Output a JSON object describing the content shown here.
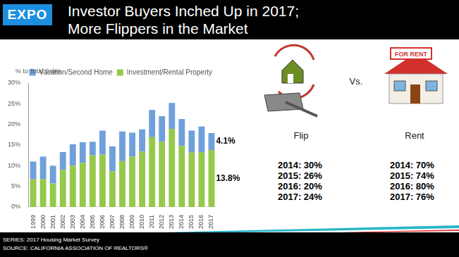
{
  "header": {
    "logo": "EXPO",
    "title_lines": [
      "Investor Buyers Inched Up in 2017;",
      "More Flippers in the Market"
    ]
  },
  "chart_data": {
    "type": "bar",
    "stacked": true,
    "grid": false,
    "legend": "top",
    "y_label": "% to Total Sales",
    "categories": [
      "1999",
      "2000",
      "2001",
      "2002",
      "2003",
      "2004",
      "2005",
      "2006",
      "2007",
      "2008",
      "2009",
      "2010",
      "2011",
      "2012",
      "2013",
      "2014",
      "2015",
      "2016",
      "2017"
    ],
    "series": [
      {
        "name": "Investment/Rental Property",
        "color": "#95c94a",
        "values": [
          6.7,
          6.8,
          5.7,
          9.0,
          10.0,
          10.7,
          12.5,
          12.7,
          8.6,
          11.1,
          12.2,
          13.4,
          16.9,
          15.8,
          18.9,
          14.8,
          13.2,
          13.3,
          13.8
        ]
      },
      {
        "name": "Vacation/Second Home",
        "color": "#6fa0dc",
        "values": [
          4.3,
          5.4,
          4.3,
          4.3,
          5.2,
          5.0,
          3.3,
          5.8,
          6.1,
          7.2,
          5.8,
          5.4,
          6.6,
          6.2,
          6.3,
          6.5,
          5.3,
          6.2,
          4.1
        ]
      }
    ],
    "annotations": [
      {
        "category": "2017",
        "series": "Vacation/Second Home",
        "label": "4.1%"
      },
      {
        "category": "2017",
        "series": "Investment/Rental Property",
        "label": "13.8%"
      }
    ],
    "ylim": [
      0,
      30
    ],
    "yticks": [
      {
        "value": 0,
        "label": "0%"
      },
      {
        "value": 5,
        "label": "5%"
      },
      {
        "value": 10,
        "label": "10%"
      },
      {
        "value": 15,
        "label": "15%"
      },
      {
        "value": 20,
        "label": "20%"
      },
      {
        "value": 25,
        "label": "25%"
      },
      {
        "value": 30,
        "label": "30%"
      }
    ]
  },
  "comparison": {
    "vs": "Vs.",
    "sign": "FOR RENT",
    "left": {
      "label": "Flip",
      "items": [
        "2014: 30%",
        "2015: 26%",
        "2016: 20%",
        "2017: 24%"
      ]
    },
    "right": {
      "label": "Rent",
      "items": [
        "2014: 70%",
        "2015: 74%",
        "2016: 80%",
        "2017: 76%"
      ]
    }
  },
  "footer": [
    "SERIES: 2017 Housing Market Survey",
    "SOURCE:  CALIFORNIA ASSOCIATION OF REALTORS®"
  ]
}
